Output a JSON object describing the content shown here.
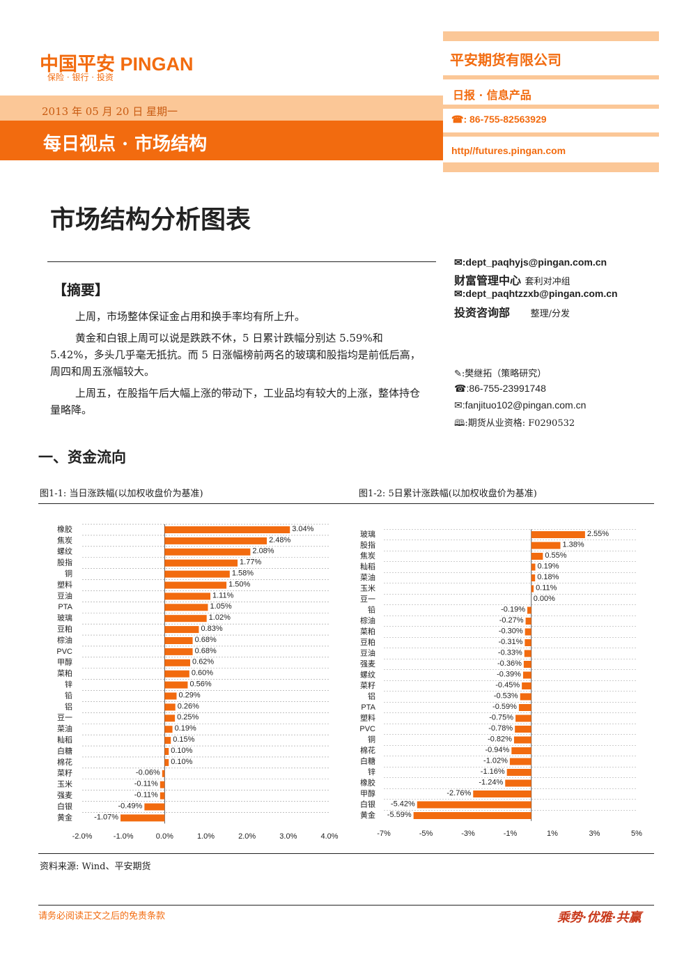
{
  "header": {
    "logo": "中国平安 PINGAN",
    "logo_tagline": "保险 · 银行 · 投资",
    "date": "2013 年 05 月 20 日 星期一",
    "column": "每日视点 · 市场结构",
    "company": "平安期货有限公司",
    "product": "日报 · 信息产品",
    "phone": "☎: 86-755-82563929",
    "website": "http//futures.pingan.com"
  },
  "title": "市场结构分析图表",
  "contacts": [
    {
      "line": "✉:dept_paqhyjs@pingan.com.cn"
    },
    {
      "line": "财富管理中心",
      "note": "套利对冲组"
    },
    {
      "line": "✉:dept_paqhtzzxb@pingan.com.cn"
    },
    {
      "line": "投资咨询部",
      "note": "整理/分发"
    },
    {
      "line": "✎:樊继拓（策略研究）"
    },
    {
      "line": "☎:86-755-23991748"
    },
    {
      "line": "✉:fanjituo102@pingan.com.cn"
    },
    {
      "line": "🕮:期货从业资格: F0290532"
    }
  ],
  "summary": {
    "heading": "【摘要】",
    "paragraphs": [
      "上周，市场整体保证金占用和换手率均有所上升。",
      "黄金和白银上周可以说是跌跌不休，5 日累计跌幅分别达 5.59%和 5.42%，多头几乎毫无抵抗。而 5 日涨幅榜前两名的玻璃和股指均是前低后高，周四和周五涨幅较大。",
      "上周五，在股指午后大幅上涨的带动下，工业品均有较大的上涨，整体持仓量略降。"
    ]
  },
  "section": "一、资金流向",
  "chart_data": [
    {
      "type": "bar",
      "orientation": "horizontal",
      "title": "图1-1: 当日涨跌幅(以加权收盘价为基准)",
      "categories": [
        "橡胶",
        "焦炭",
        "螺纹",
        "股指",
        "铜",
        "塑料",
        "豆油",
        "PTA",
        "玻璃",
        "豆粕",
        "棕油",
        "PVC",
        "甲醇",
        "菜粕",
        "锌",
        "铅",
        "铝",
        "豆一",
        "菜油",
        "籼稻",
        "白糖",
        "棉花",
        "菜籽",
        "玉米",
        "强麦",
        "白银",
        "黄金"
      ],
      "values": [
        3.04,
        2.48,
        2.08,
        1.77,
        1.58,
        1.5,
        1.11,
        1.05,
        1.02,
        0.83,
        0.68,
        0.68,
        0.62,
        0.6,
        0.56,
        0.29,
        0.26,
        0.25,
        0.19,
        0.15,
        0.1,
        0.1,
        -0.06,
        -0.11,
        -0.11,
        -0.49,
        -1.07
      ],
      "value_labels": [
        "3.04%",
        "2.48%",
        "2.08%",
        "1.77%",
        "1.58%",
        "1.50%",
        "1.11%",
        "1.05%",
        "1.02%",
        "0.83%",
        "0.68%",
        "0.68%",
        "0.62%",
        "0.60%",
        "0.56%",
        "0.29%",
        "0.26%",
        "0.25%",
        "0.19%",
        "0.15%",
        "0.10%",
        "0.10%",
        "-0.06%",
        "-0.11%",
        "-0.11%",
        "-0.49%",
        "-1.07%"
      ],
      "color": "#f26b0f",
      "xlim": [
        -2,
        4
      ],
      "xticks": [
        {
          "value": -2,
          "label": "-2.0%"
        },
        {
          "value": -1,
          "label": "-1.0%"
        },
        {
          "value": 0,
          "label": "0.0%"
        },
        {
          "value": 1,
          "label": "1.0%"
        },
        {
          "value": 2,
          "label": "2.0%"
        },
        {
          "value": 3,
          "label": "3.0%"
        },
        {
          "value": 4,
          "label": "4.0%"
        }
      ]
    },
    {
      "type": "bar",
      "orientation": "horizontal",
      "title": "图1-2: 5日累计涨跌幅(以加权收盘价为基准)",
      "categories": [
        "玻璃",
        "股指",
        "焦炭",
        "籼稻",
        "菜油",
        "玉米",
        "豆一",
        "铅",
        "棕油",
        "菜粕",
        "豆粕",
        "豆油",
        "强麦",
        "螺纹",
        "菜籽",
        "铝",
        "PTA",
        "塑料",
        "PVC",
        "铜",
        "棉花",
        "白糖",
        "锌",
        "橡胶",
        "甲醇",
        "白银",
        "黄金"
      ],
      "values": [
        2.55,
        1.38,
        0.55,
        0.19,
        0.18,
        0.11,
        0.0,
        -0.19,
        -0.27,
        -0.3,
        -0.31,
        -0.33,
        -0.36,
        -0.39,
        -0.45,
        -0.53,
        -0.59,
        -0.75,
        -0.78,
        -0.82,
        -0.94,
        -1.02,
        -1.16,
        -1.24,
        -2.76,
        -5.42,
        -5.59
      ],
      "value_labels": [
        "2.55%",
        "1.38%",
        "0.55%",
        "0.19%",
        "0.18%",
        "0.11%",
        "0.00%",
        "-0.19%",
        "-0.27%",
        "-0.30%",
        "-0.31%",
        "-0.33%",
        "-0.36%",
        "-0.39%",
        "-0.45%",
        "-0.53%",
        "-0.59%",
        "-0.75%",
        "-0.78%",
        "-0.82%",
        "-0.94%",
        "-1.02%",
        "-1.16%",
        "-1.24%",
        "-2.76%",
        "-5.42%",
        "-5.59%"
      ],
      "color": "#f26b0f",
      "xlim": [
        -7,
        5
      ],
      "xticks": [
        {
          "value": -7,
          "label": "-7%"
        },
        {
          "value": -5,
          "label": "-5%"
        },
        {
          "value": -3,
          "label": "-3%"
        },
        {
          "value": -1,
          "label": "-1%"
        },
        {
          "value": 1,
          "label": "1%"
        },
        {
          "value": 3,
          "label": "3%"
        },
        {
          "value": 5,
          "label": "5%"
        }
      ]
    }
  ],
  "source": "资料来源: Wind、平安期货",
  "footer": {
    "disclaimer": "请务必阅读正文之后的免责条款",
    "slogan": "乘势·优雅·共赢"
  }
}
